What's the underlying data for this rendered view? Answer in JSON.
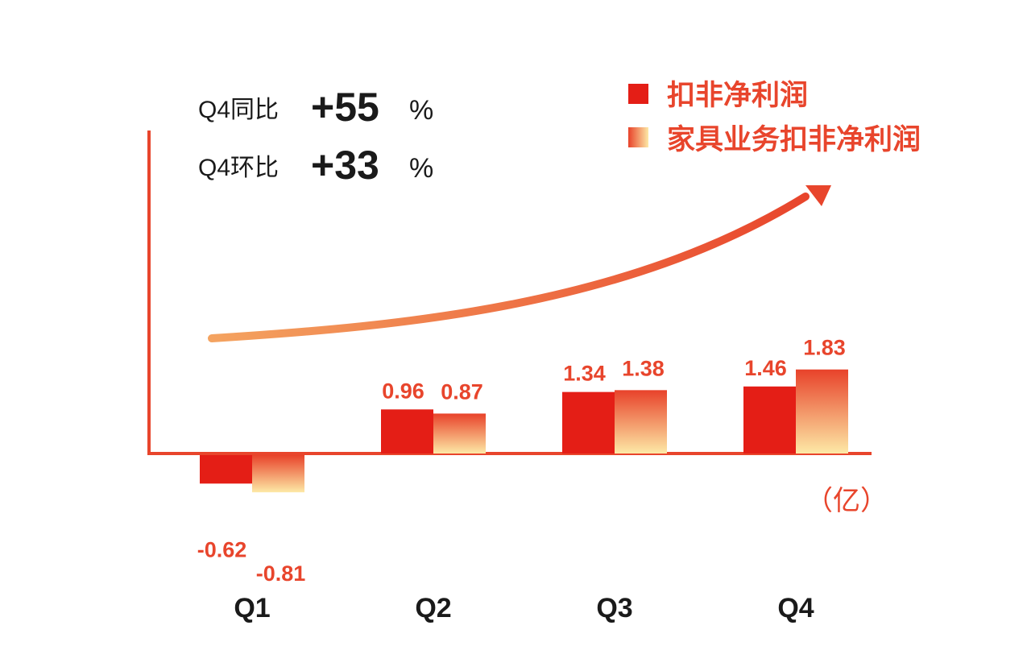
{
  "kpis": [
    {
      "label": "Q4同比",
      "value": "+55",
      "unit": "%"
    },
    {
      "label": "Q4环比",
      "value": "+33",
      "unit": "%"
    }
  ],
  "legend": [
    {
      "label": "扣非净利润"
    },
    {
      "label": "家具业务扣非净利润"
    }
  ],
  "unit_label": "（亿）",
  "colors": {
    "accent": "#e8452c",
    "series1": "#e41e16",
    "series2_top": "#e8422a",
    "series2_bottom": "#fde9a6",
    "arrow_start": "#f4a360",
    "arrow_end": "#e8452c"
  },
  "chart_data": {
    "type": "bar",
    "categories": [
      "Q1",
      "Q2",
      "Q3",
      "Q4"
    ],
    "series": [
      {
        "name": "扣非净利润",
        "values": [
          -0.62,
          0.96,
          1.34,
          1.46
        ],
        "labels": [
          "-0.62",
          "0.96",
          "1.34",
          "1.46"
        ]
      },
      {
        "name": "家具业务扣非净利润",
        "values": [
          -0.81,
          0.87,
          1.38,
          1.83
        ],
        "labels": [
          "-0.81",
          "0.87",
          "1.38",
          "1.83"
        ]
      }
    ],
    "ylim": [
      -1,
      1.83
    ],
    "grid": false,
    "legend_position": "top-right",
    "trend_arrow": "upward"
  }
}
